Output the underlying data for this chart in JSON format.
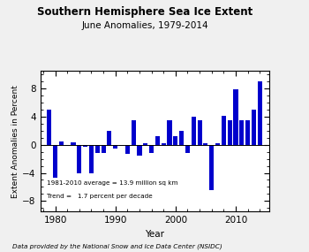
{
  "title1": "Southern Hemisphere Sea Ice Extent",
  "title2": "June Anomalies, 1979-2014",
  "xlabel": "Year",
  "ylabel": "Extent Anomalies in Percent",
  "footnote": "Data provided by the National Snow and Ice Data Center (NSIDC)",
  "legend_line1": "1981-2010 average = 13.9 million sq km",
  "legend_line2": "Trend =   1.7 percent per decade",
  "years": [
    1979,
    1980,
    1981,
    1982,
    1983,
    1984,
    1985,
    1986,
    1987,
    1988,
    1989,
    1990,
    1991,
    1992,
    1993,
    1994,
    1995,
    1996,
    1997,
    1998,
    1999,
    2000,
    2001,
    2002,
    2003,
    2004,
    2005,
    2006,
    2007,
    2008,
    2009,
    2010,
    2011,
    2012,
    2013,
    2014
  ],
  "values": [
    5.0,
    -4.7,
    0.4,
    -0.2,
    0.3,
    -4.1,
    -0.3,
    -4.1,
    -1.2,
    -1.2,
    2.0,
    -0.5,
    -0.2,
    -1.3,
    3.5,
    -1.5,
    0.2,
    -1.2,
    1.2,
    0.2,
    3.5,
    1.2,
    2.0,
    -1.2,
    4.0,
    3.5,
    0.2,
    -6.5,
    0.2,
    4.1,
    3.5,
    7.8,
    3.5,
    3.5,
    5.0,
    9.0
  ],
  "bar_color": "#0000CC",
  "ylim": [
    -9.5,
    10.5
  ],
  "yticks": [
    -8,
    -4,
    0,
    4,
    8
  ],
  "xlim": [
    1977.5,
    2015.5
  ],
  "xticks": [
    1980,
    1990,
    2000,
    2010
  ],
  "bg_color": "#f0f0f0",
  "plot_bg": "#ffffff"
}
